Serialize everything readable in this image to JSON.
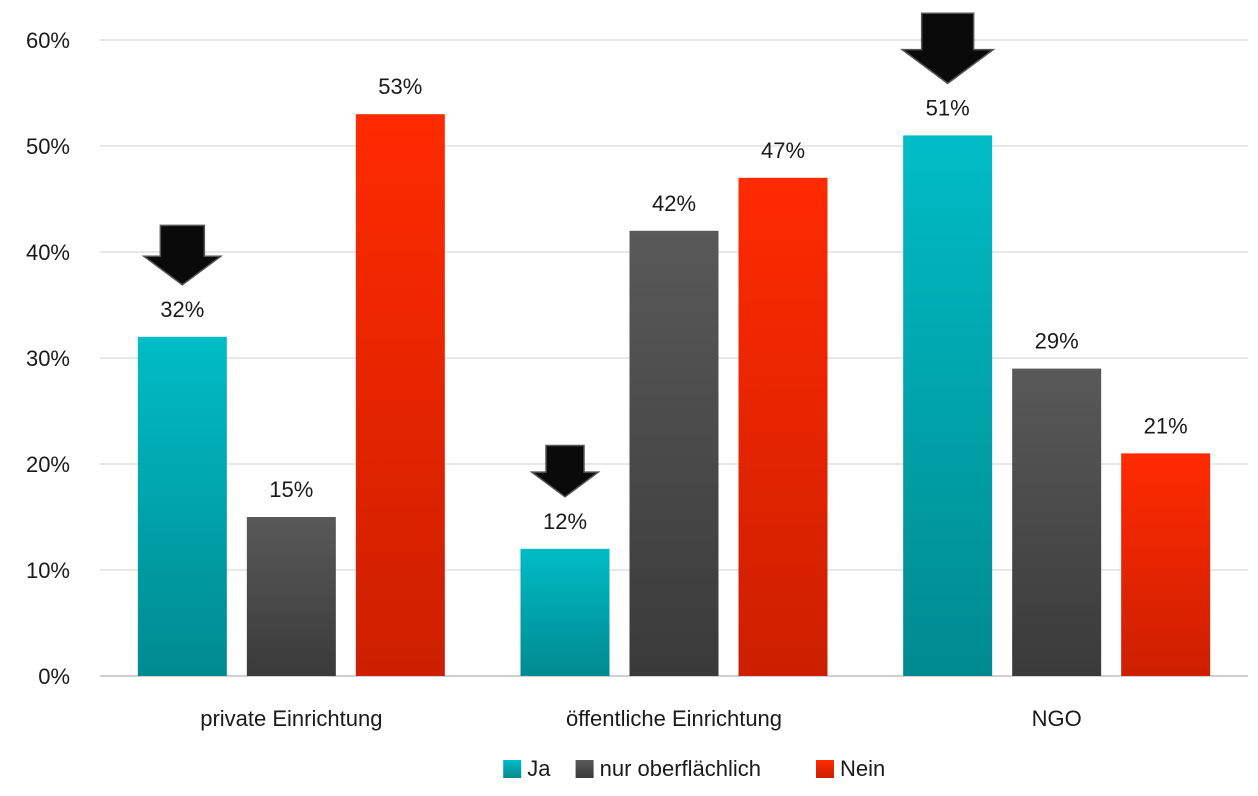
{
  "chart_data": {
    "type": "bar",
    "title": "",
    "xlabel": "",
    "ylabel": "",
    "categories": [
      "private Einrichtung",
      "öffentliche Einrichtung",
      "NGO"
    ],
    "series": [
      {
        "name": "Ja",
        "values": [
          32,
          12,
          51
        ],
        "labels": [
          "32%",
          "12%",
          "51%"
        ],
        "color_top": "#00bcc6",
        "color_bottom": "#008a90"
      },
      {
        "name": "nur oberflächlich",
        "values": [
          15,
          42,
          29
        ],
        "labels": [
          "15%",
          "42%",
          "29%"
        ],
        "color_top": "#595959",
        "color_bottom": "#3a3a3a"
      },
      {
        "name": "Nein",
        "values": [
          53,
          47,
          21
        ],
        "labels": [
          "53%",
          "47%",
          "21%"
        ],
        "color_top": "#ff2a00",
        "color_bottom": "#cc1f00"
      }
    ],
    "ylim": [
      0,
      60
    ],
    "yticks": [
      0,
      10,
      20,
      30,
      40,
      50,
      60
    ],
    "ytick_labels": [
      "0%",
      "10%",
      "20%",
      "30%",
      "40%",
      "50%",
      "60%"
    ],
    "grid": true,
    "legend_position": "bottom",
    "highlight_markers": {
      "shape": "down-arrow",
      "series": "Ja",
      "categories": [
        "private Einrichtung",
        "öffentliche Einrichtung",
        "NGO"
      ]
    }
  }
}
